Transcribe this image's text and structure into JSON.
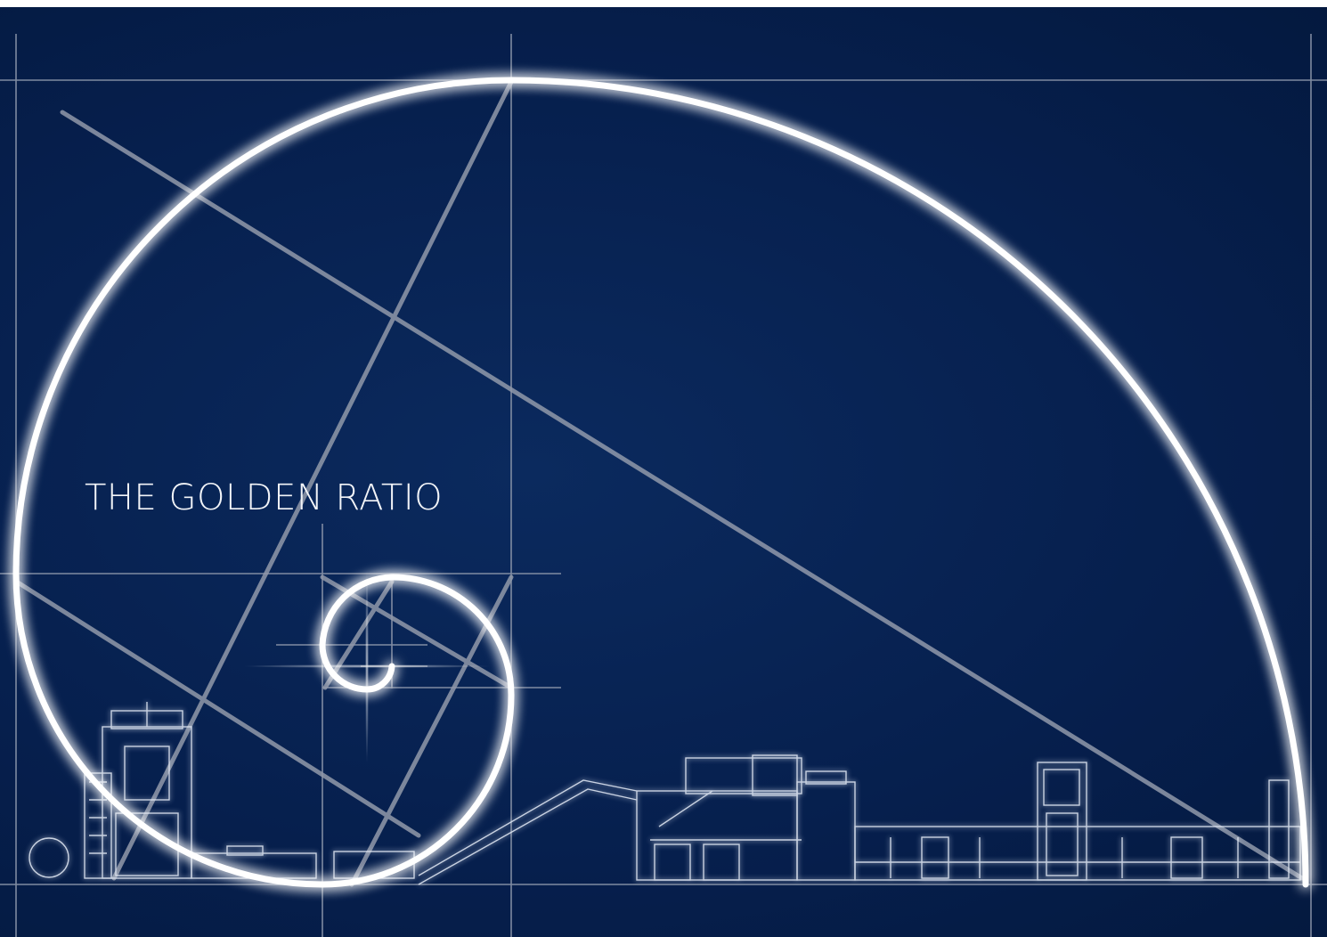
{
  "title": "THE GOLDEN RATIO",
  "colors": {
    "background": "#061f4d",
    "spiral": "#ffffff",
    "construction_lines": "#9aa3b5",
    "machinery": "#dfe6f2"
  },
  "icons": [
    "golden-spiral",
    "machinery-line-drawing"
  ]
}
